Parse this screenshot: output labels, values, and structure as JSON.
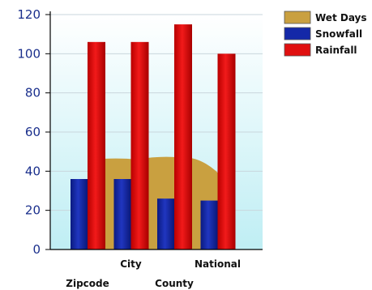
{
  "chart_data": {
    "type": "bar",
    "categories": [
      "Zipcode",
      "City",
      "County",
      "National"
    ],
    "series": [
      {
        "name": "Wet Days",
        "kind": "area",
        "color": "#c9a040",
        "values": [
          46,
          46,
          47,
          36
        ]
      },
      {
        "name": "Snowfall",
        "kind": "bar",
        "color": "#1428a8",
        "values": [
          36,
          36,
          26,
          25
        ]
      },
      {
        "name": "Rainfall",
        "kind": "bar",
        "color": "#e01010",
        "values": [
          106,
          106,
          115,
          100
        ]
      }
    ],
    "ylim": [
      0,
      120
    ],
    "yticks": [
      0,
      20,
      40,
      60,
      80,
      100,
      120
    ],
    "grid": true,
    "legend_position": "top-right",
    "colors": {
      "background_top": "#ffffff",
      "background_bottom": "#bfeef4",
      "axis_tick_text": "#1a2f8c"
    }
  }
}
